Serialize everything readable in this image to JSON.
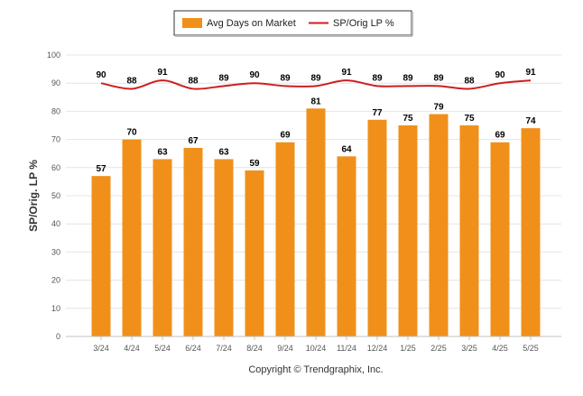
{
  "chart_data": {
    "type": "bar",
    "title": "",
    "xlabel": "",
    "ylabel": "SP/Orig. LP %",
    "ylim": [
      0,
      100
    ],
    "yticks": [
      0,
      10,
      20,
      30,
      40,
      50,
      60,
      70,
      80,
      90,
      100
    ],
    "grid": true,
    "legend_position": "top",
    "categories": [
      "3/24",
      "4/24",
      "5/24",
      "6/24",
      "7/24",
      "8/24",
      "9/24",
      "10/24",
      "11/24",
      "12/24",
      "1/25",
      "2/25",
      "3/25",
      "4/25",
      "5/25"
    ],
    "series": [
      {
        "name": "Avg Days on Market",
        "kind": "bar",
        "color": "#f0901a",
        "values": [
          57,
          70,
          63,
          67,
          63,
          59,
          69,
          81,
          64,
          77,
          75,
          79,
          75,
          69,
          74
        ]
      },
      {
        "name": "SP/Orig LP %",
        "kind": "line",
        "color": "#cc1f1f",
        "values": [
          90,
          88,
          91,
          88,
          89,
          90,
          89,
          89,
          91,
          89,
          89,
          89,
          88,
          90,
          91
        ]
      }
    ]
  },
  "footer": {
    "copyright": "Copyright © Trendgraphix, Inc."
  }
}
